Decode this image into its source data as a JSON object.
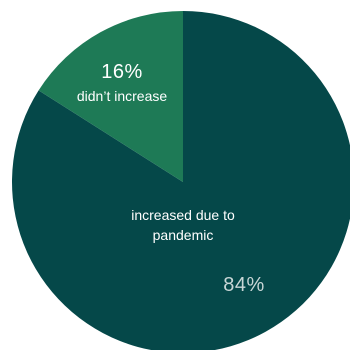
{
  "chart_data": {
    "type": "pie",
    "slices": [
      {
        "label": "increased due to pandemic",
        "label_lines": [
          "increased due to",
          "pandemic"
        ],
        "value": 84,
        "value_label": "84%",
        "color": "#054849"
      },
      {
        "label": "didn't increase",
        "label_lines": [
          "didn’t increase"
        ],
        "value": 16,
        "value_label": "16%",
        "color": "#1e7a56"
      }
    ]
  }
}
